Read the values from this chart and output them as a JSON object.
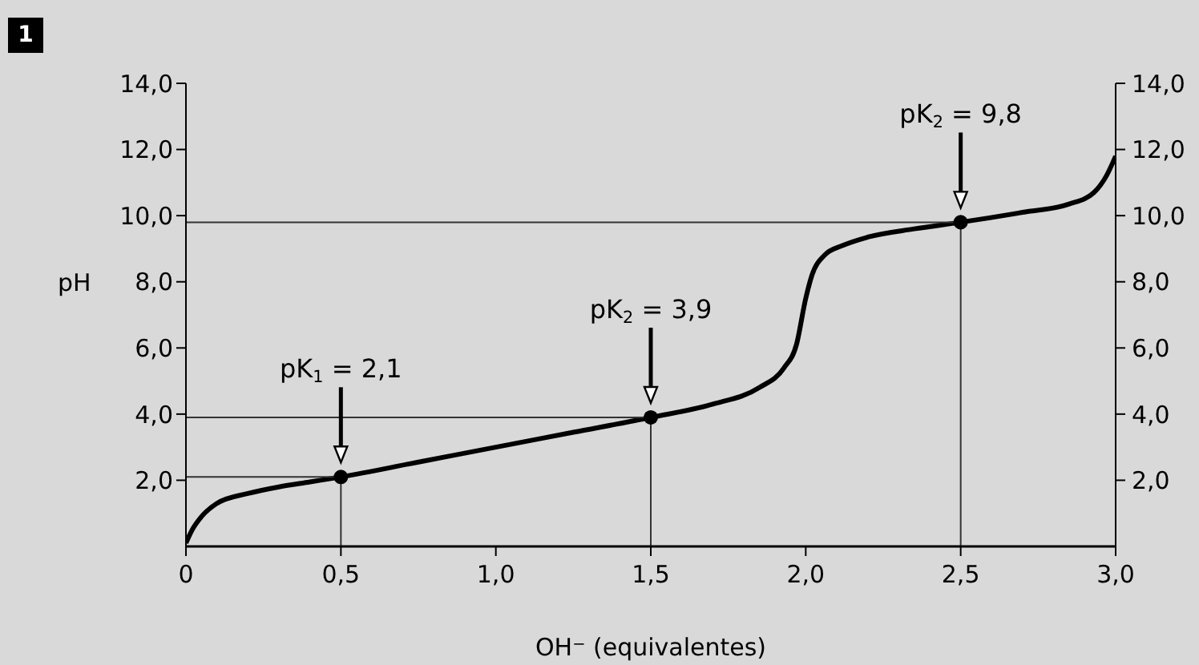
{
  "chart_data": {
    "type": "line",
    "ylabel": "pH",
    "xlabel": "OH$^{−}$ (equivalentes)",
    "annotations": [
      "1",
      "pK$_{1}$ = 2,1",
      "pK$_{2}$ = 3,9",
      "pK$_{2}$ = 9,8"
    ],
    "series": [
      {
        "type": "line",
        "color": "#000000",
        "marker": "none",
        "x": [
          0,
          0.02,
          0.05,
          0.1,
          0.2,
          0.3,
          0.4,
          0.5,
          0.75,
          1.0,
          1.25,
          1.5,
          1.7,
          1.85,
          1.93,
          1.97,
          2.0,
          2.02,
          2.06,
          2.12,
          2.2,
          2.35,
          2.5,
          2.7,
          2.85,
          2.93,
          2.97,
          3.0
        ],
        "values": [
          0.1,
          0.5,
          0.9,
          1.3,
          1.6,
          1.8,
          1.95,
          2.1,
          2.55,
          3.0,
          3.45,
          3.9,
          4.3,
          4.8,
          5.4,
          6.1,
          7.5,
          8.2,
          8.8,
          9.1,
          9.35,
          9.6,
          9.8,
          10.1,
          10.35,
          10.7,
          11.2,
          11.8
        ]
      },
      {
        "color": "#333333",
        "marker": "none",
        "x": [
          0,
          0.5,
          0.5
        ],
        "values": [
          2.1,
          2.1,
          0
        ]
      },
      {
        "color": "#333333",
        "marker": "none",
        "x": [
          0,
          1.5,
          1.5
        ],
        "values": [
          3.9,
          3.9,
          0
        ]
      },
      {
        "color": "#333333",
        "marker": "none",
        "x": [
          0,
          2.5,
          2.5
        ],
        "values": [
          9.8,
          9.8,
          0
        ]
      },
      {
        "type": "scatter",
        "color": "#000000",
        "marker": "circle",
        "x": [
          0.5,
          1.5,
          2.5
        ],
        "values": [
          2.1,
          3.9,
          9.8
        ]
      }
    ],
    "xlim": [
      0,
      3
    ],
    "xticks": [
      0,
      {
        "value": 0.5,
        "label": "0,5"
      },
      {
        "value": 1,
        "label": "1,0"
      },
      {
        "value": 1.5,
        "label": "1,5"
      },
      {
        "value": 2,
        "label": "2,0"
      },
      {
        "value": 2.5,
        "label": "2,5"
      },
      {
        "value": 3,
        "label": "3,0"
      }
    ],
    "ylim": [
      0,
      14
    ],
    "yticks": [
      {
        "value": 2,
        "label": "2,0"
      },
      {
        "value": 4,
        "label": "4,0"
      },
      {
        "value": 6,
        "label": "6,0"
      },
      {
        "value": 8,
        "label": "8,0"
      },
      {
        "value": 10,
        "label": "10,0"
      },
      {
        "value": 12,
        "label": "12,0"
      },
      {
        "value": 14,
        "label": "14,0"
      }
    ],
    "y2lim": [
      0,
      14
    ],
    "y2ticks": [
      {
        "value": 2,
        "label": "2,0"
      },
      {
        "value": 4,
        "label": "4,0"
      },
      {
        "value": 6,
        "label": "6,0"
      },
      {
        "value": 8,
        "label": "8,0"
      },
      {
        "value": 10,
        "label": "10,0"
      },
      {
        "value": 12,
        "label": "12,0"
      },
      {
        "value": 14,
        "label": "14,0"
      }
    ],
    "grid": false
  }
}
